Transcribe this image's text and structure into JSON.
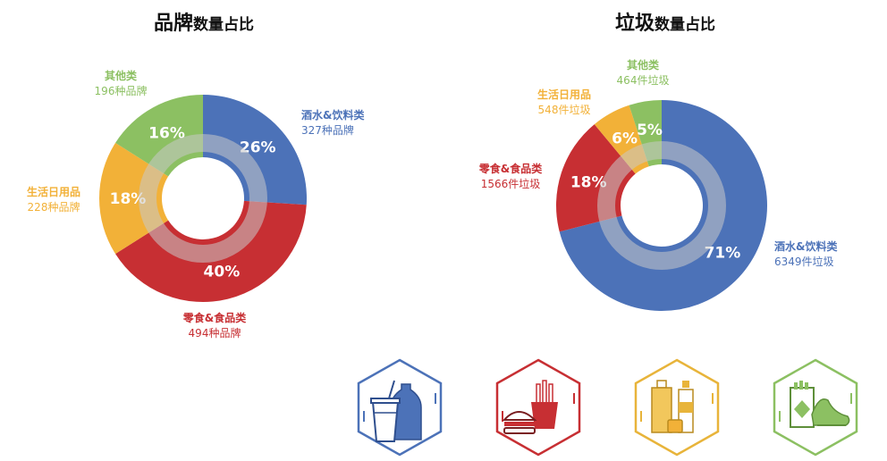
{
  "chart_data": [
    {
      "type": "pie",
      "title": "品牌数量占比",
      "title_main": "品牌",
      "title_sub": "数量占比",
      "slices": [
        {
          "name": "酒水&饮料类",
          "value": 26,
          "pct_label": "26%",
          "detail": "327种品牌",
          "color": "#4C72B8"
        },
        {
          "name": "零食&食品类",
          "value": 40,
          "pct_label": "40%",
          "detail": "494种品牌",
          "color": "#C72F33"
        },
        {
          "name": "生活日用品",
          "value": 18,
          "pct_label": "18%",
          "detail": "228种品牌",
          "color": "#F2B138"
        },
        {
          "name": "其他类",
          "value": 16,
          "pct_label": "16%",
          "detail": "196种品牌",
          "color": "#8CC062"
        }
      ]
    },
    {
      "type": "pie",
      "title": "垃圾数量占比",
      "title_main": "垃圾",
      "title_sub": "数量占比",
      "slices": [
        {
          "name": "酒水&饮料类",
          "value": 71,
          "pct_label": "71%",
          "detail": "6349件垃圾",
          "color": "#4C72B8"
        },
        {
          "name": "零食&食品类",
          "value": 18,
          "pct_label": "18%",
          "detail": "1566件垃圾",
          "color": "#C72F33"
        },
        {
          "name": "生活日用品",
          "value": 6,
          "pct_label": "6%",
          "detail": "548件垃圾",
          "color": "#F2B138"
        },
        {
          "name": "其他类",
          "value": 5,
          "pct_label": "5%",
          "detail": "464件垃圾",
          "color": "#8CC062"
        }
      ]
    }
  ],
  "icons": [
    {
      "name": "drinks-category-icon",
      "color": "#4C72B8"
    },
    {
      "name": "snacks-food-category-icon",
      "color": "#C72F33"
    },
    {
      "name": "daily-goods-category-icon",
      "color": "#E8B43A"
    },
    {
      "name": "other-category-icon",
      "color": "#8CC062"
    }
  ]
}
